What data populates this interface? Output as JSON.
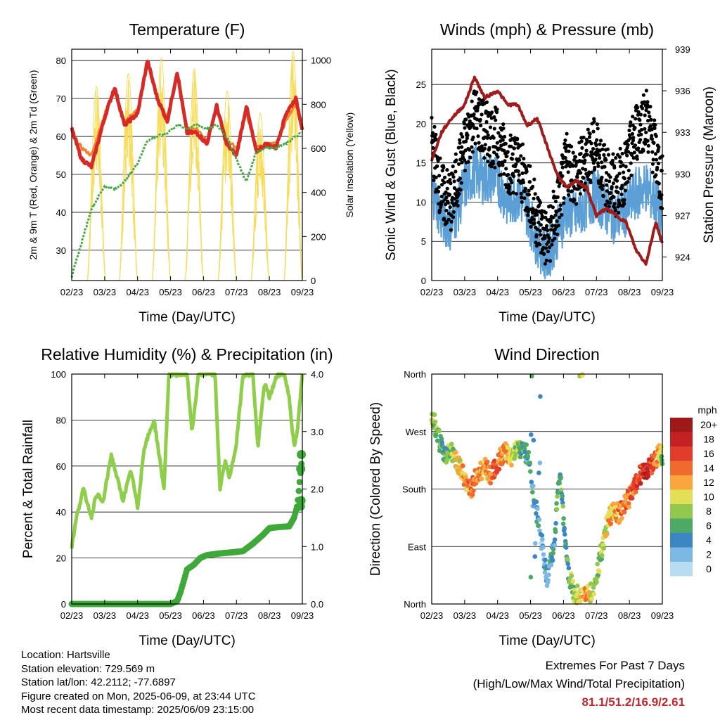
{
  "colors": {
    "temp_2m": "#d62a26",
    "temp_9m": "#f4812e",
    "dewpoint": "#44a840",
    "solar": "#f7dc5a",
    "wind": "#5b9fd6",
    "gust": "#000000",
    "pressure": "#a01b1b",
    "rh": "#8fce4a",
    "precip": "#3fa83a"
  },
  "chart_data": [
    {
      "id": "temperature",
      "type": "line",
      "title": "Temperature (F)",
      "xlabel": "Time (Day/UTC)",
      "ylabel": "2m & 9m T (Red, Orange) & 2m Td (Green)",
      "y2label": "Solar Insolation (Yellow)",
      "xticks": [
        "02/23",
        "03/23",
        "04/23",
        "05/23",
        "06/23",
        "07/23",
        "08/23",
        "09/23"
      ],
      "ylim": [
        22,
        83
      ],
      "yticks": [
        30,
        40,
        50,
        60,
        70,
        80
      ],
      "y2lim": [
        0,
        1050
      ],
      "y2ticks": [
        0,
        200,
        400,
        600,
        800,
        1000
      ],
      "grid": true,
      "series": [
        {
          "key": "t2m",
          "x": [
            0,
            0.3,
            0.6,
            1.0,
            1.3,
            1.6,
            2.0,
            2.3,
            2.6,
            2.9,
            3.2,
            3.5,
            3.8,
            4.1,
            4.4,
            4.7,
            5.0,
            5.3,
            5.6,
            5.9,
            6.2,
            6.5,
            6.8,
            7.0
          ],
          "values": [
            62,
            54,
            52,
            65,
            73,
            63,
            66,
            80,
            70,
            64,
            77,
            61,
            61,
            58,
            68,
            58,
            55,
            68,
            56,
            58,
            57,
            66,
            70,
            62
          ]
        },
        {
          "key": "t9m",
          "x": [
            0,
            0.3,
            0.6,
            1.0,
            1.3,
            1.6,
            2.0,
            2.3,
            2.6,
            2.9,
            3.2,
            3.5,
            3.8,
            4.1,
            4.4,
            4.7,
            5.0,
            5.3,
            5.6,
            5.9,
            6.2,
            6.5,
            6.8,
            7.0
          ],
          "values": [
            61,
            57,
            55,
            66,
            72,
            64,
            67,
            79,
            70,
            65,
            76,
            62,
            62,
            59,
            67,
            59,
            57,
            66,
            57,
            58,
            58,
            64,
            69,
            63
          ]
        },
        {
          "key": "td",
          "x": [
            0,
            0.3,
            0.6,
            1.0,
            1.3,
            1.6,
            2.0,
            2.3,
            2.6,
            2.9,
            3.2,
            3.5,
            3.8,
            4.1,
            4.4,
            4.7,
            5.0,
            5.3,
            5.6,
            5.9,
            6.2,
            6.5,
            6.8,
            7.0
          ],
          "values": [
            23,
            32,
            41,
            47,
            46,
            48,
            53,
            59,
            60,
            61,
            63,
            62,
            63,
            62,
            63,
            60,
            54,
            48,
            56,
            57,
            57,
            58,
            60,
            61
          ]
        }
      ],
      "solar_peaks": [
        {
          "x": 0.75,
          "value": 880
        },
        {
          "x": 1.72,
          "value": 940
        },
        {
          "x": 2.72,
          "value": 1010
        },
        {
          "x": 3.72,
          "value": 960
        },
        {
          "x": 4.72,
          "value": 860
        },
        {
          "x": 5.72,
          "value": 760
        },
        {
          "x": 6.72,
          "value": 1040
        }
      ]
    },
    {
      "id": "winds",
      "type": "scatter",
      "title": "Winds (mph) & Pressure (mb)",
      "xlabel": "Time (Day/UTC)",
      "ylabel": "Sonic Wind & Gust (Blue, Black)",
      "y2label": "Station Pressure (Maroon)",
      "xticks": [
        "02/23",
        "03/23",
        "04/23",
        "05/23",
        "06/23",
        "07/23",
        "08/23",
        "09/23"
      ],
      "ylim": [
        0,
        29.5
      ],
      "yticks": [
        0,
        5,
        10,
        15,
        20,
        25
      ],
      "y2lim": [
        922.3,
        939
      ],
      "y2ticks": [
        924,
        927,
        930,
        933,
        936,
        939
      ],
      "grid": true,
      "wind": {
        "x": [
          0,
          0.3,
          0.6,
          1.0,
          1.3,
          1.6,
          2.0,
          2.3,
          2.6,
          2.9,
          3.2,
          3.5,
          3.8,
          4.1,
          4.4,
          4.7,
          5.0,
          5.3,
          5.6,
          5.9,
          6.2,
          6.5,
          6.8,
          7.0
        ],
        "values": [
          12,
          8,
          7,
          12,
          14,
          13,
          13,
          10,
          11,
          9,
          5,
          3,
          6,
          9,
          8,
          10,
          11,
          9,
          8,
          9,
          11,
          12,
          10,
          7
        ]
      },
      "gust": {
        "x": [
          0,
          0.3,
          0.6,
          1.0,
          1.3,
          1.6,
          2.0,
          2.3,
          2.6,
          2.9,
          3.2,
          3.5,
          3.8,
          4.1,
          4.4,
          4.7,
          5.0,
          5.3,
          5.6,
          5.9,
          6.2,
          6.5,
          6.8,
          7.0
        ],
        "values": [
          18,
          11,
          10,
          17,
          21,
          19,
          18,
          15,
          15,
          12,
          8,
          5,
          9,
          15,
          13,
          16,
          17,
          13,
          12,
          14,
          19,
          21,
          16,
          12
        ]
      },
      "pressure": {
        "x": [
          0,
          0.3,
          0.6,
          1.0,
          1.3,
          1.6,
          2.0,
          2.3,
          2.6,
          2.9,
          3.2,
          3.5,
          3.8,
          4.1,
          4.4,
          4.7,
          5.0,
          5.3,
          5.6,
          5.9,
          6.2,
          6.5,
          6.8,
          7.0
        ],
        "values": [
          931,
          933,
          934,
          935,
          937,
          935.5,
          936,
          935,
          935,
          933.5,
          934,
          932,
          930,
          929,
          929.5,
          929,
          927,
          927.5,
          927,
          926.5,
          924.5,
          923.5,
          926.5,
          925
        ]
      }
    },
    {
      "id": "humidity",
      "type": "line",
      "title": "Relative Humidity (%) & Precipitation (in)",
      "xlabel": "Time (Day/UTC)",
      "ylabel": "Percent & Total Rainfall",
      "xticks": [
        "02/23",
        "03/23",
        "04/23",
        "05/23",
        "06/23",
        "07/23",
        "08/23",
        "09/23"
      ],
      "ylim": [
        0,
        100
      ],
      "yticks": [
        0,
        20,
        40,
        60,
        80,
        100
      ],
      "y2lim": [
        0,
        4
      ],
      "y2ticks": [
        "0.0",
        "1.0",
        "2.0",
        "3.0",
        "4.0"
      ],
      "grid": true,
      "rh": {
        "x": [
          0,
          0.15,
          0.35,
          0.6,
          0.75,
          0.95,
          1.2,
          1.55,
          1.8,
          2.0,
          2.2,
          2.5,
          2.8,
          2.95,
          3.1,
          3.5,
          3.65,
          3.85,
          4.0,
          4.35,
          4.5,
          4.65,
          4.8,
          5.0,
          5.2,
          5.5,
          5.65,
          5.85,
          6.0,
          6.25,
          6.45,
          6.6,
          6.75,
          6.85,
          7.0
        ],
        "values": [
          25,
          38,
          50,
          38,
          48,
          44,
          65,
          45,
          58,
          42,
          68,
          80,
          50,
          100,
          100,
          100,
          75,
          100,
          100,
          100,
          50,
          62,
          55,
          70,
          100,
          100,
          68,
          96,
          90,
          100,
          100,
          90,
          68,
          75,
          100
        ]
      },
      "precip": {
        "x": [
          0,
          3.0,
          3.2,
          3.3,
          3.5,
          3.7,
          3.9,
          4.1,
          4.5,
          4.9,
          5.2,
          5.5,
          5.8,
          6.0,
          6.3,
          6.6,
          6.75,
          6.85,
          6.95,
          7.0
        ],
        "values": [
          0,
          0,
          0.05,
          0.2,
          0.6,
          0.68,
          0.8,
          0.85,
          0.88,
          0.9,
          0.92,
          1.05,
          1.2,
          1.32,
          1.34,
          1.35,
          1.5,
          1.72,
          2.3,
          2.6
        ]
      }
    },
    {
      "id": "direction",
      "type": "scatter",
      "title": "Wind Direction",
      "xlabel": "Time (Day/UTC)",
      "ylabel": "Direction (Colored By Speed)",
      "xticks": [
        "02/23",
        "03/23",
        "04/23",
        "05/23",
        "06/23",
        "07/23",
        "08/23",
        "09/23"
      ],
      "ylim": [
        0,
        360
      ],
      "ytick_labels": [
        "North",
        "East",
        "South",
        "West",
        "North"
      ],
      "grid": true,
      "direction": {
        "x": [
          0,
          0.2,
          0.4,
          0.6,
          0.8,
          1.0,
          1.2,
          1.4,
          1.6,
          1.8,
          2.0,
          2.2,
          2.4,
          2.6,
          2.8,
          2.95,
          3.1,
          3.3,
          3.5,
          3.7,
          3.9,
          4.1,
          4.3,
          4.5,
          4.7,
          4.9,
          5.1,
          5.3,
          5.5,
          5.7,
          5.9,
          6.1,
          6.3,
          6.5,
          6.7,
          6.9,
          7.0
        ],
        "values": [
          300,
          260,
          230,
          240,
          220,
          195,
          180,
          205,
          215,
          200,
          220,
          240,
          230,
          245,
          240,
          230,
          170,
          110,
          40,
          90,
          210,
          60,
          20,
          10,
          15,
          20,
          70,
          120,
          150,
          140,
          160,
          175,
          200,
          210,
          220,
          235,
          230
        ],
        "speeds": [
          10,
          8,
          6,
          8,
          11,
          12,
          14,
          13,
          12,
          14,
          15,
          13,
          11,
          8,
          6,
          5,
          4,
          3,
          3,
          4,
          6,
          5,
          8,
          10,
          12,
          9,
          8,
          10,
          12,
          13,
          14,
          15,
          16,
          18,
          15,
          12,
          8
        ]
      },
      "legend": {
        "title": "mph",
        "labels": [
          "20+",
          "18",
          "16",
          "14",
          "12",
          "10",
          "8",
          "6",
          "4",
          "2",
          "0"
        ],
        "colors": [
          "#9e1a1a",
          "#c42124",
          "#e23c2d",
          "#f06a2e",
          "#f8a63d",
          "#e3df56",
          "#91c84d",
          "#4ca966",
          "#3c86c4",
          "#7bb8e3",
          "#b8ddf3"
        ]
      }
    }
  ],
  "info": {
    "location": "Location: Hartsville",
    "elevation": "Station elevation: 729.569 m",
    "latlon": "Station lat/lon: 42.2112; -77.6897",
    "created": "Figure created on Mon, 2025-06-09, at 23:44 UTC",
    "recent": "Most recent data timestamp: 2025/06/09 23:15:00"
  },
  "extremes": {
    "title": "Extremes For Past 7 Days",
    "subtitle": "(High/Low/Max Wind/Total Precipitation)",
    "values": "81.1/51.2/16.9/2.61"
  }
}
